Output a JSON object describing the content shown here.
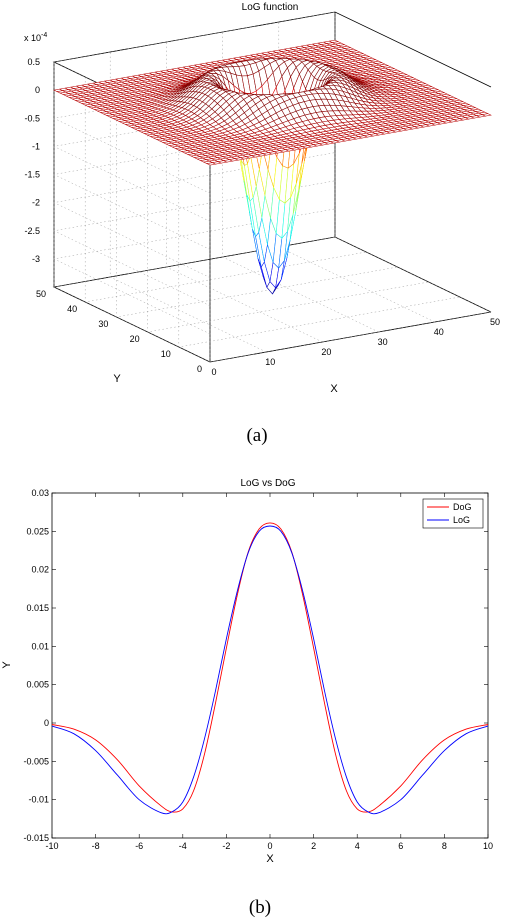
{
  "chart_data": [
    {
      "type": "surface",
      "title": "LoG function",
      "xlabel": "X",
      "ylabel": "Y",
      "zlabel": "",
      "z_exponent_label": "x 10",
      "z_exponent_power": "-4",
      "xlim": [
        0,
        50
      ],
      "ylim": [
        0,
        50
      ],
      "zlim": [
        -3.5,
        0.5
      ],
      "xticks": [
        "0",
        "10",
        "20",
        "30",
        "40",
        "50"
      ],
      "yticks": [
        "0",
        "10",
        "20",
        "30",
        "40",
        "50"
      ],
      "zticks": [
        "0.5",
        "0",
        "-0.5",
        "-1",
        "-1.5",
        "-2",
        "-2.5",
        "-3"
      ],
      "grid": true,
      "colormap": "jet",
      "surface": {
        "center": [
          25,
          25
        ],
        "sigma": 5,
        "min_z": -3.4,
        "max_z": 0.2
      },
      "caption": "(a)"
    },
    {
      "type": "line",
      "title": "LoG vs DoG",
      "xlabel": "X",
      "ylabel": "Y",
      "xlim": [
        -10,
        10
      ],
      "ylim": [
        -0.015,
        0.03
      ],
      "xticks": [
        "-10",
        "-8",
        "-6",
        "-4",
        "-2",
        "0",
        "2",
        "4",
        "6",
        "8",
        "10"
      ],
      "yticks": [
        "0.03",
        "0.025",
        "0.02",
        "0.015",
        "0.01",
        "0.005",
        "0",
        "-0.005",
        "-0.01",
        "-0.015"
      ],
      "legend": "top-right",
      "series": [
        {
          "name": "DoG",
          "color": "#ff0000",
          "x": [
            -10,
            -9,
            -8,
            -7,
            -6,
            -5,
            -4.5,
            -4,
            -3.5,
            -3,
            -2.5,
            -2,
            -1.5,
            -1,
            -0.5,
            0,
            0.5,
            1,
            1.5,
            2,
            2.5,
            3,
            3.5,
            4,
            4.5,
            5,
            6,
            7,
            8,
            9,
            10
          ],
          "y": [
            -0.0002,
            -0.0008,
            -0.0022,
            -0.0048,
            -0.0082,
            -0.0108,
            -0.0116,
            -0.0112,
            -0.0088,
            -0.004,
            0.0026,
            0.0098,
            0.0167,
            0.0223,
            0.0253,
            0.0261,
            0.0253,
            0.0223,
            0.0167,
            0.0098,
            0.0026,
            -0.004,
            -0.0088,
            -0.0112,
            -0.0116,
            -0.0108,
            -0.0082,
            -0.0048,
            -0.0022,
            -0.0008,
            -0.0002
          ]
        },
        {
          "name": "LoG",
          "color": "#0000ff",
          "x": [
            -10,
            -9,
            -8,
            -7,
            -6,
            -5,
            -4.5,
            -4,
            -3.5,
            -3,
            -2.5,
            -2,
            -1.5,
            -1,
            -0.5,
            0,
            0.5,
            1,
            1.5,
            2,
            2.5,
            3,
            3.5,
            4,
            4.5,
            5,
            6,
            7,
            8,
            9,
            10
          ],
          "y": [
            -0.0004,
            -0.0014,
            -0.0036,
            -0.0068,
            -0.01,
            -0.0117,
            -0.0116,
            -0.0103,
            -0.007,
            -0.002,
            0.0042,
            0.011,
            0.0172,
            0.0222,
            0.025,
            0.0257,
            0.025,
            0.0222,
            0.0172,
            0.011,
            0.0042,
            -0.002,
            -0.007,
            -0.0103,
            -0.0116,
            -0.0117,
            -0.01,
            -0.0068,
            -0.0036,
            -0.0014,
            -0.0004
          ]
        }
      ],
      "caption": "(b)"
    }
  ]
}
